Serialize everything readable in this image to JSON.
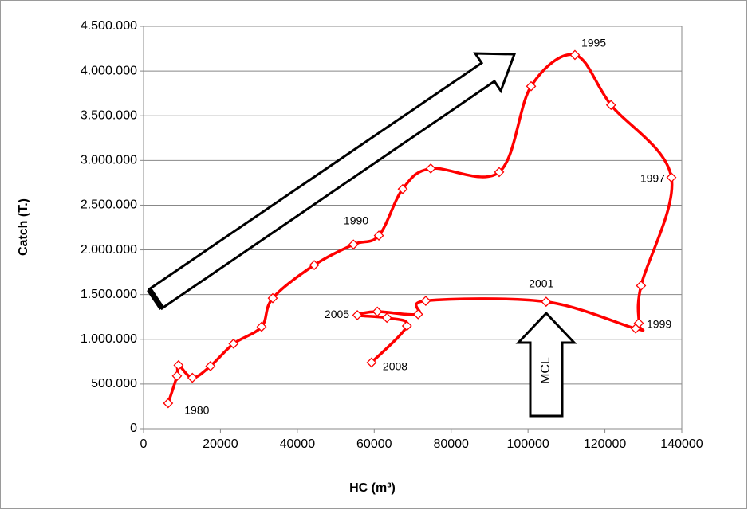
{
  "chart_data": {
    "type": "line",
    "xlabel": "HC (m³)",
    "ylabel": "Catch  (T.)",
    "x": [
      6400,
      8700,
      9100,
      12700,
      17400,
      23400,
      30700,
      33600,
      44400,
      54600,
      61200,
      67400,
      74700,
      92500,
      100800,
      112200,
      121600,
      137300,
      129400,
      128800,
      128000,
      104700,
      73400,
      71400,
      60800,
      55600,
      63300,
      68500,
      59300
    ],
    "series": [
      {
        "color": "#ff0000",
        "values": [
          285000,
          590000,
          710000,
          570000,
          700000,
          950000,
          1140000,
          1460000,
          1830000,
          2060000,
          2160000,
          2680000,
          2910000,
          2870000,
          3830000,
          4180000,
          3620000,
          2810000,
          1600000,
          1180000,
          1120000,
          1420000,
          1430000,
          1280000,
          1310000,
          1270000,
          1240000,
          1150000,
          740000
        ],
        "point_labels": [
          "1980",
          null,
          null,
          null,
          null,
          null,
          null,
          null,
          null,
          null,
          "1990",
          null,
          null,
          null,
          null,
          "1995",
          null,
          "1997",
          null,
          "1999",
          null,
          "2001",
          null,
          null,
          null,
          "2005",
          null,
          null,
          "2008"
        ]
      }
    ],
    "annotations": [
      "MCL"
    ],
    "xlim": [
      0,
      140000
    ],
    "xticks": [
      0,
      20000,
      40000,
      60000,
      80000,
      100000,
      120000,
      140000
    ],
    "ylim": [
      0,
      4500000
    ],
    "yticks": [
      0,
      {
        "value": 500000,
        "label": "500.000"
      },
      {
        "value": 1000000,
        "label": "1.000.000"
      },
      {
        "value": 1500000,
        "label": "1.500.000"
      },
      {
        "value": 2000000,
        "label": "2.000.000"
      },
      {
        "value": 2500000,
        "label": "2.500.000"
      },
      {
        "value": 3000000,
        "label": "3.000.000"
      },
      {
        "value": 3500000,
        "label": "3.500.000"
      },
      {
        "value": 4000000,
        "label": "4.000.000"
      },
      {
        "value": 4500000,
        "label": "4.500.000"
      }
    ],
    "grid": true
  }
}
